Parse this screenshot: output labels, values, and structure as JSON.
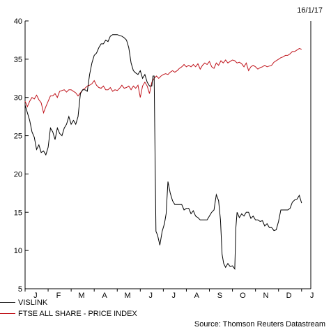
{
  "date_label": "16/1/17",
  "source": "Source: Thomson Reuters Datastream",
  "chart_data": {
    "type": "line",
    "ylim": [
      5,
      40
    ],
    "y_ticks": [
      5,
      10,
      15,
      20,
      25,
      30,
      35,
      40
    ],
    "x_range": [
      0,
      12.4
    ],
    "month_labels": [
      "J",
      "F",
      "M",
      "A",
      "M",
      "J",
      "J",
      "A",
      "S",
      "O",
      "N",
      "D",
      "J"
    ],
    "legend_position": "bottom-left",
    "series": [
      {
        "name": "VISLINK",
        "color": "#000000",
        "points": [
          [
            0.0,
            29.0
          ],
          [
            0.1,
            28.0
          ],
          [
            0.2,
            27.0
          ],
          [
            0.3,
            25.5
          ],
          [
            0.4,
            24.8
          ],
          [
            0.5,
            23.2
          ],
          [
            0.6,
            23.8
          ],
          [
            0.7,
            22.8
          ],
          [
            0.8,
            23.0
          ],
          [
            0.9,
            22.5
          ],
          [
            1.0,
            23.5
          ],
          [
            1.1,
            26.0
          ],
          [
            1.2,
            25.5
          ],
          [
            1.3,
            24.5
          ],
          [
            1.4,
            26.0
          ],
          [
            1.5,
            25.3
          ],
          [
            1.6,
            25.0
          ],
          [
            1.7,
            26.0
          ],
          [
            1.8,
            26.5
          ],
          [
            1.9,
            27.5
          ],
          [
            2.0,
            26.5
          ],
          [
            2.1,
            27.0
          ],
          [
            2.2,
            26.5
          ],
          [
            2.3,
            27.5
          ],
          [
            2.4,
            30.5
          ],
          [
            2.5,
            31.0
          ],
          [
            2.6,
            31.0
          ],
          [
            2.7,
            30.8
          ],
          [
            2.8,
            33.0
          ],
          [
            2.9,
            34.5
          ],
          [
            3.0,
            35.5
          ],
          [
            3.1,
            35.8
          ],
          [
            3.2,
            36.5
          ],
          [
            3.3,
            37.0
          ],
          [
            3.4,
            37.0
          ],
          [
            3.5,
            37.5
          ],
          [
            3.6,
            37.3
          ],
          [
            3.7,
            38.0
          ],
          [
            3.8,
            38.2
          ],
          [
            3.9,
            38.2
          ],
          [
            4.0,
            38.2
          ],
          [
            4.1,
            38.1
          ],
          [
            4.2,
            38.0
          ],
          [
            4.3,
            37.8
          ],
          [
            4.4,
            37.5
          ],
          [
            4.5,
            36.5
          ],
          [
            4.6,
            34.5
          ],
          [
            4.7,
            33.5
          ],
          [
            4.8,
            33.2
          ],
          [
            4.9,
            33.0
          ],
          [
            5.0,
            33.5
          ],
          [
            5.1,
            32.5
          ],
          [
            5.2,
            33.0
          ],
          [
            5.3,
            32.0
          ],
          [
            5.4,
            31.5
          ],
          [
            5.5,
            31.5
          ],
          [
            5.55,
            32.8
          ],
          [
            5.6,
            32.8
          ],
          [
            5.68,
            12.5
          ],
          [
            5.75,
            12.0
          ],
          [
            5.85,
            10.7
          ],
          [
            5.95,
            12.5
          ],
          [
            6.05,
            13.5
          ],
          [
            6.12,
            14.8
          ],
          [
            6.2,
            19.0
          ],
          [
            6.3,
            17.5
          ],
          [
            6.4,
            16.5
          ],
          [
            6.5,
            16.0
          ],
          [
            6.6,
            16.0
          ],
          [
            6.7,
            16.0
          ],
          [
            6.8,
            16.0
          ],
          [
            6.9,
            15.3
          ],
          [
            7.0,
            15.5
          ],
          [
            7.1,
            15.5
          ],
          [
            7.2,
            14.8
          ],
          [
            7.3,
            15.2
          ],
          [
            7.4,
            14.5
          ],
          [
            7.5,
            14.3
          ],
          [
            7.6,
            14.0
          ],
          [
            7.7,
            14.0
          ],
          [
            7.8,
            14.0
          ],
          [
            7.9,
            14.0
          ],
          [
            8.0,
            14.5
          ],
          [
            8.1,
            15.0
          ],
          [
            8.2,
            15.3
          ],
          [
            8.3,
            17.3
          ],
          [
            8.4,
            16.5
          ],
          [
            8.48,
            14.0
          ],
          [
            8.55,
            9.5
          ],
          [
            8.62,
            8.3
          ],
          [
            8.7,
            7.8
          ],
          [
            8.8,
            8.3
          ],
          [
            8.9,
            7.9
          ],
          [
            9.0,
            8.0
          ],
          [
            9.1,
            7.6
          ],
          [
            9.15,
            13.0
          ],
          [
            9.2,
            15.0
          ],
          [
            9.3,
            14.3
          ],
          [
            9.4,
            14.8
          ],
          [
            9.5,
            14.5
          ],
          [
            9.6,
            15.0
          ],
          [
            9.7,
            15.0
          ],
          [
            9.8,
            14.2
          ],
          [
            9.9,
            14.5
          ],
          [
            10.0,
            14.0
          ],
          [
            10.1,
            14.0
          ],
          [
            10.2,
            13.8
          ],
          [
            10.3,
            13.9
          ],
          [
            10.4,
            13.2
          ],
          [
            10.5,
            13.5
          ],
          [
            10.6,
            13.0
          ],
          [
            10.7,
            13.0
          ],
          [
            10.8,
            12.6
          ],
          [
            10.9,
            12.7
          ],
          [
            11.0,
            13.8
          ],
          [
            11.1,
            15.3
          ],
          [
            11.2,
            15.3
          ],
          [
            11.3,
            15.3
          ],
          [
            11.4,
            15.3
          ],
          [
            11.5,
            15.5
          ],
          [
            11.6,
            16.3
          ],
          [
            11.7,
            16.6
          ],
          [
            11.8,
            16.7
          ],
          [
            11.9,
            17.2
          ],
          [
            12.0,
            16.2
          ]
        ]
      },
      {
        "name": "FTSE ALL SHARE - PRICE INDEX",
        "color": "#c0141c",
        "points": [
          [
            0.0,
            29.5
          ],
          [
            0.1,
            28.8
          ],
          [
            0.2,
            29.5
          ],
          [
            0.3,
            30.0
          ],
          [
            0.4,
            29.8
          ],
          [
            0.5,
            30.3
          ],
          [
            0.6,
            29.7
          ],
          [
            0.7,
            29.3
          ],
          [
            0.8,
            28.0
          ],
          [
            0.9,
            28.8
          ],
          [
            1.0,
            29.5
          ],
          [
            1.1,
            30.2
          ],
          [
            1.2,
            30.2
          ],
          [
            1.3,
            30.5
          ],
          [
            1.4,
            30.0
          ],
          [
            1.5,
            30.8
          ],
          [
            1.6,
            30.9
          ],
          [
            1.7,
            31.0
          ],
          [
            1.8,
            30.7
          ],
          [
            1.9,
            31.0
          ],
          [
            2.0,
            31.0
          ],
          [
            2.1,
            30.8
          ],
          [
            2.2,
            30.6
          ],
          [
            2.3,
            30.2
          ],
          [
            2.4,
            30.6
          ],
          [
            2.5,
            31.0
          ],
          [
            2.6,
            31.2
          ],
          [
            2.7,
            31.5
          ],
          [
            2.8,
            31.6
          ],
          [
            2.9,
            31.8
          ],
          [
            3.0,
            32.2
          ],
          [
            3.1,
            31.6
          ],
          [
            3.2,
            31.3
          ],
          [
            3.3,
            31.2
          ],
          [
            3.4,
            31.5
          ],
          [
            3.5,
            31.0
          ],
          [
            3.6,
            31.0
          ],
          [
            3.7,
            31.3
          ],
          [
            3.8,
            30.8
          ],
          [
            3.9,
            31.0
          ],
          [
            4.0,
            30.9
          ],
          [
            4.1,
            31.2
          ],
          [
            4.2,
            31.6
          ],
          [
            4.3,
            31.2
          ],
          [
            4.4,
            31.3
          ],
          [
            4.5,
            31.5
          ],
          [
            4.6,
            31.0
          ],
          [
            4.7,
            31.5
          ],
          [
            4.8,
            31.2
          ],
          [
            4.9,
            31.6
          ],
          [
            5.0,
            30.0
          ],
          [
            5.1,
            31.5
          ],
          [
            5.2,
            32.0
          ],
          [
            5.3,
            31.5
          ],
          [
            5.4,
            30.5
          ],
          [
            5.5,
            32.0
          ],
          [
            5.6,
            32.5
          ],
          [
            5.7,
            32.8
          ],
          [
            5.8,
            32.5
          ],
          [
            5.9,
            32.8
          ],
          [
            6.0,
            33.0
          ],
          [
            6.1,
            33.1
          ],
          [
            6.2,
            33.0
          ],
          [
            6.3,
            33.3
          ],
          [
            6.4,
            33.5
          ],
          [
            6.5,
            33.3
          ],
          [
            6.6,
            33.5
          ],
          [
            6.7,
            33.8
          ],
          [
            6.8,
            34.0
          ],
          [
            6.9,
            34.3
          ],
          [
            7.0,
            34.0
          ],
          [
            7.1,
            34.2
          ],
          [
            7.2,
            34.0
          ],
          [
            7.3,
            34.3
          ],
          [
            7.4,
            34.0
          ],
          [
            7.5,
            34.4
          ],
          [
            7.6,
            33.7
          ],
          [
            7.7,
            34.2
          ],
          [
            7.8,
            34.5
          ],
          [
            7.9,
            34.3
          ],
          [
            8.0,
            34.7
          ],
          [
            8.1,
            34.0
          ],
          [
            8.2,
            33.8
          ],
          [
            8.3,
            34.5
          ],
          [
            8.4,
            34.2
          ],
          [
            8.5,
            34.8
          ],
          [
            8.6,
            34.5
          ],
          [
            8.7,
            34.9
          ],
          [
            8.8,
            34.5
          ],
          [
            8.9,
            34.7
          ],
          [
            9.0,
            34.9
          ],
          [
            9.1,
            34.8
          ],
          [
            9.2,
            34.5
          ],
          [
            9.3,
            34.6
          ],
          [
            9.4,
            34.4
          ],
          [
            9.5,
            34.0
          ],
          [
            9.6,
            34.5
          ],
          [
            9.7,
            33.5
          ],
          [
            9.8,
            34.0
          ],
          [
            9.9,
            34.2
          ],
          [
            10.0,
            34.0
          ],
          [
            10.1,
            33.7
          ],
          [
            10.2,
            33.9
          ],
          [
            10.3,
            34.0
          ],
          [
            10.4,
            34.2
          ],
          [
            10.5,
            34.0
          ],
          [
            10.6,
            34.1
          ],
          [
            10.7,
            34.2
          ],
          [
            10.8,
            34.6
          ],
          [
            10.9,
            34.8
          ],
          [
            11.0,
            35.0
          ],
          [
            11.1,
            35.2
          ],
          [
            11.2,
            35.3
          ],
          [
            11.3,
            35.5
          ],
          [
            11.4,
            35.5
          ],
          [
            11.5,
            35.7
          ],
          [
            11.6,
            36.0
          ],
          [
            11.7,
            36.0
          ],
          [
            11.8,
            36.2
          ],
          [
            11.9,
            36.4
          ],
          [
            12.0,
            36.3
          ]
        ]
      }
    ]
  }
}
